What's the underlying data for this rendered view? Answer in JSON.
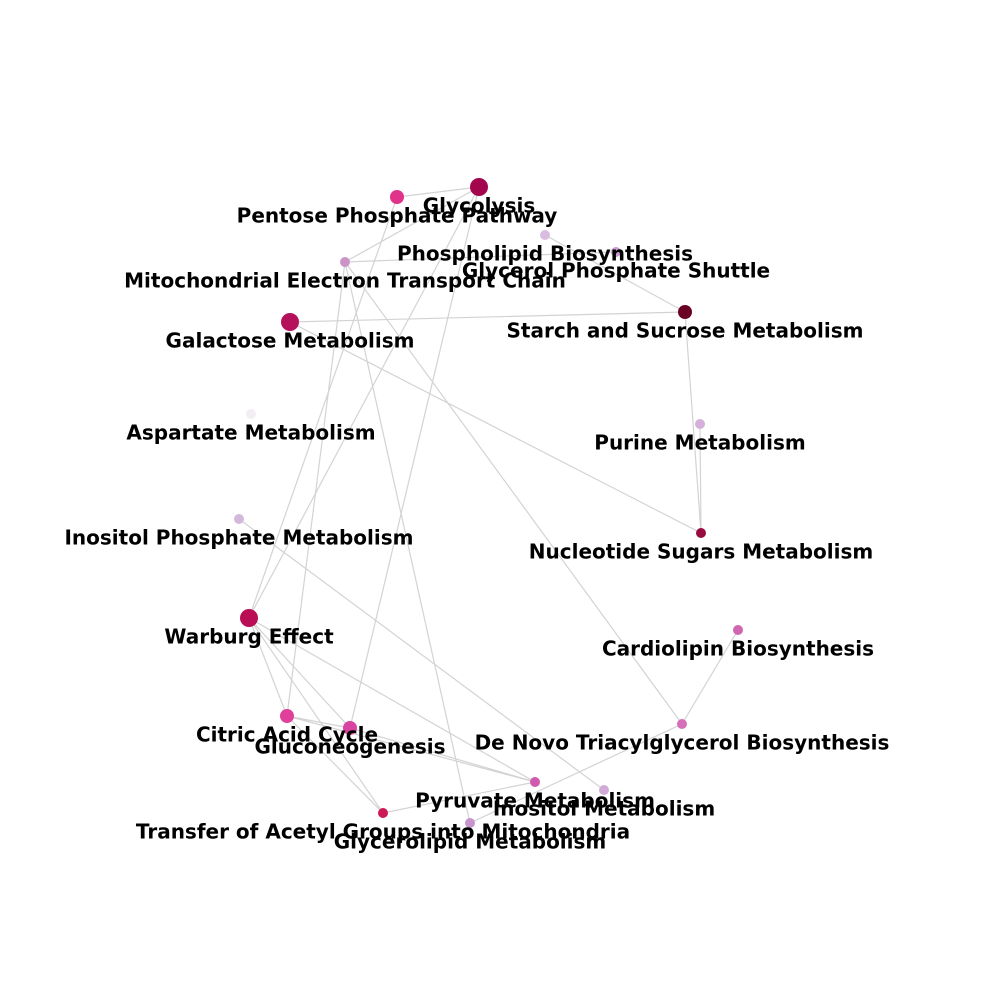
{
  "nodes": [
    {
      "id": "glycolysis",
      "label": "Glycolysis",
      "color": "#a3064d",
      "size": "large"
    },
    {
      "id": "ppp",
      "label": "Pentose Phosphate Pathway",
      "color": "#e0338a",
      "size": "medium"
    },
    {
      "id": "phospholipid",
      "label": "Phospholipid Biosynthesis",
      "color": "#d9bde0",
      "size": "small"
    },
    {
      "id": "gps",
      "label": "Glycerol Phosphate Shuttle",
      "color": "#c99ad0",
      "size": "small"
    },
    {
      "id": "metc",
      "label": "Mitochondrial Electron Transport Chain",
      "color": "#cc93c9",
      "size": "small"
    },
    {
      "id": "galactose",
      "label": "Galactose Metabolism",
      "color": "#b5105a",
      "size": "large"
    },
    {
      "id": "starch",
      "label": "Starch and Sucrose Metabolism",
      "color": "#6a0025",
      "size": "medium"
    },
    {
      "id": "aspartate",
      "label": "Aspartate Metabolism",
      "color": "#f2eef4",
      "size": "small"
    },
    {
      "id": "purine",
      "label": "Purine Metabolism",
      "color": "#d4b0da",
      "size": "small"
    },
    {
      "id": "inositolp",
      "label": "Inositol Phosphate Metabolism",
      "color": "#d4b8dc",
      "size": "small"
    },
    {
      "id": "nucsugar",
      "label": "Nucleotide Sugars Metabolism",
      "color": "#980a40",
      "size": "small"
    },
    {
      "id": "warburg",
      "label": "Warburg Effect",
      "color": "#b90e55",
      "size": "large"
    },
    {
      "id": "cardiolipin",
      "label": "Cardiolipin Biosynthesis",
      "color": "#d066b0",
      "size": "small"
    },
    {
      "id": "tca",
      "label": "Citric Acid Cycle",
      "color": "#e0409a",
      "size": "medium"
    },
    {
      "id": "gluconeo",
      "label": "Gluconeogenesis",
      "color": "#d944a0",
      "size": "medium"
    },
    {
      "id": "denovo",
      "label": "De Novo Triacylglycerol Biosynthesis",
      "color": "#d46fb8",
      "size": "small"
    },
    {
      "id": "pyruvate",
      "label": "Pyruvate Metabolism",
      "color": "#d05aac",
      "size": "small"
    },
    {
      "id": "inositol",
      "label": "Inositol Metabolism",
      "color": "#d2aad8",
      "size": "small"
    },
    {
      "id": "acetyl",
      "label": "Transfer of Acetyl Groups into Mitochondria",
      "color": "#cc1a55",
      "size": "small"
    },
    {
      "id": "glycerolipid",
      "label": "Glycerolipid Metabolism",
      "color": "#c894cd",
      "size": "small"
    }
  ],
  "edges": [
    [
      "glycolysis",
      "ppp"
    ],
    [
      "glycolysis",
      "metc"
    ],
    [
      "glycolysis",
      "warburg"
    ],
    [
      "glycolysis",
      "gluconeo"
    ],
    [
      "ppp",
      "warburg"
    ],
    [
      "phospholipid",
      "starch"
    ],
    [
      "metc",
      "gps"
    ],
    [
      "metc",
      "tca"
    ],
    [
      "metc",
      "glycerolipid"
    ],
    [
      "metc",
      "denovo"
    ],
    [
      "galactose",
      "starch"
    ],
    [
      "galactose",
      "nucsugar"
    ],
    [
      "starch",
      "nucsugar"
    ],
    [
      "purine",
      "nucsugar"
    ],
    [
      "inositolp",
      "inositol"
    ],
    [
      "warburg",
      "tca"
    ],
    [
      "warburg",
      "gluconeo"
    ],
    [
      "warburg",
      "pyruvate"
    ],
    [
      "warburg",
      "acetyl"
    ],
    [
      "tca",
      "gluconeo"
    ],
    [
      "tca",
      "pyruvate"
    ],
    [
      "tca",
      "acetyl"
    ],
    [
      "gluconeo",
      "pyruvate"
    ],
    [
      "pyruvate",
      "acetyl"
    ],
    [
      "cardiolipin",
      "denovo"
    ],
    [
      "denovo",
      "glycerolipid"
    ]
  ]
}
